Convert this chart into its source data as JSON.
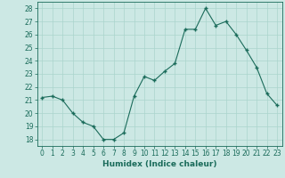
{
  "x": [
    0,
    1,
    2,
    3,
    4,
    5,
    6,
    7,
    8,
    9,
    10,
    11,
    12,
    13,
    14,
    15,
    16,
    17,
    18,
    19,
    20,
    21,
    22,
    23
  ],
  "y": [
    21.2,
    21.3,
    21.0,
    20.0,
    19.3,
    19.0,
    18.0,
    18.0,
    18.5,
    21.3,
    22.8,
    22.5,
    23.2,
    23.8,
    26.4,
    26.4,
    28.0,
    26.7,
    27.0,
    26.0,
    24.8,
    23.5,
    21.5,
    20.6
  ],
  "line_color": "#1a6b5a",
  "marker": "+",
  "marker_size": 3,
  "marker_linewidth": 1.0,
  "bg_color": "#cce8e4",
  "grid_color": "#aad4cc",
  "xlabel": "Humidex (Indice chaleur)",
  "ylabel": "",
  "xlim": [
    -0.5,
    23.5
  ],
  "ylim": [
    17.5,
    28.5
  ],
  "yticks": [
    18,
    19,
    20,
    21,
    22,
    23,
    24,
    25,
    26,
    27,
    28
  ],
  "xticks": [
    0,
    1,
    2,
    3,
    4,
    5,
    6,
    7,
    8,
    9,
    10,
    11,
    12,
    13,
    14,
    15,
    16,
    17,
    18,
    19,
    20,
    21,
    22,
    23
  ],
  "label_fontsize": 6.5,
  "tick_fontsize": 5.5
}
